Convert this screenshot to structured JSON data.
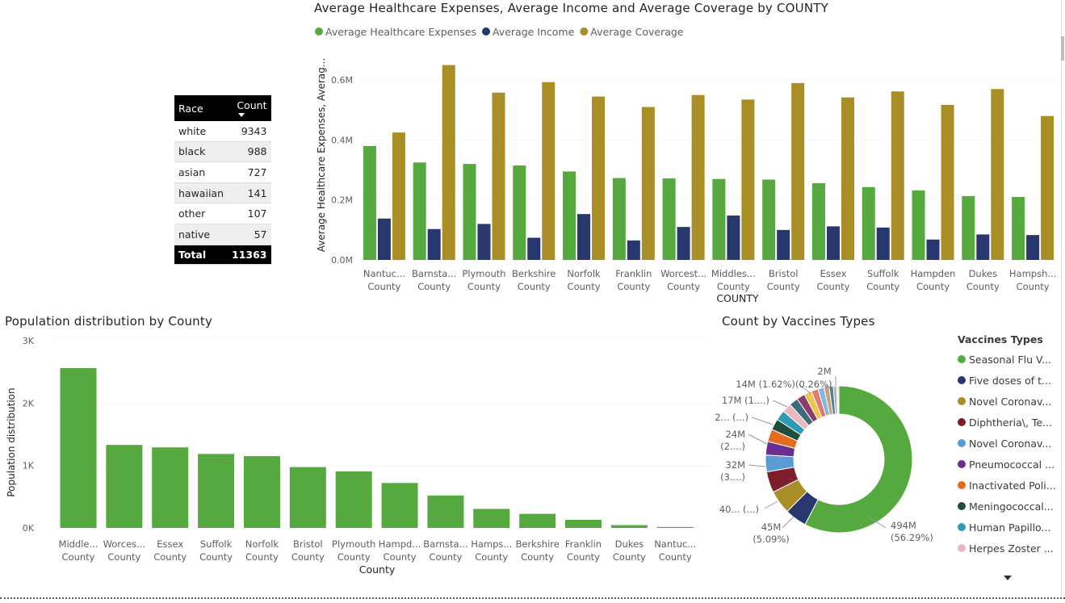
{
  "race_table": {
    "headers": [
      "Race",
      "Count"
    ],
    "rows": [
      {
        "race": "white",
        "count": "9343"
      },
      {
        "race": "black",
        "count": "988"
      },
      {
        "race": "asian",
        "count": "727"
      },
      {
        "race": "hawaiian",
        "count": "141"
      },
      {
        "race": "other",
        "count": "107"
      },
      {
        "race": "native",
        "count": "57"
      }
    ],
    "total_label": "Total",
    "total_value": "11363"
  },
  "top_chart_title": "Average Healthcare Expenses, Average Income and Average Coverage by COUNTY",
  "pop_chart_title": "Population distribution by County",
  "vac_chart_title": "Count by Vaccines Types",
  "chart_data": [
    {
      "type": "bar",
      "title": "Average Healthcare Expenses, Average Income and Average Coverage by COUNTY",
      "xlabel": "COUNTY",
      "ylabel": "Average Healthcare Expenses, Averag...",
      "ylim": [
        0,
        0.7
      ],
      "yticks": [
        "0.0M",
        "0.2M",
        "0.4M",
        "0.6M"
      ],
      "legend_position": "top-left",
      "categories": [
        [
          "Nantuc...",
          "County"
        ],
        [
          "Barnsta...",
          "County"
        ],
        [
          "Plymouth",
          "County"
        ],
        [
          "Berkshire",
          "County"
        ],
        [
          "Norfolk",
          "County"
        ],
        [
          "Franklin",
          "County"
        ],
        [
          "Worcest...",
          "County"
        ],
        [
          "Middles...",
          "County"
        ],
        [
          "Bristol",
          "County"
        ],
        [
          "Essex",
          "County"
        ],
        [
          "Suffolk",
          "County"
        ],
        [
          "Hampden",
          "County"
        ],
        [
          "Dukes",
          "County"
        ],
        [
          "Hampsh...",
          "County"
        ]
      ],
      "series": [
        {
          "name": "Average Healthcare Expenses",
          "color": "#56A93F",
          "values": [
            0.38,
            0.325,
            0.32,
            0.315,
            0.295,
            0.273,
            0.272,
            0.27,
            0.268,
            0.256,
            0.243,
            0.232,
            0.213,
            0.21
          ]
        },
        {
          "name": "Average Income",
          "color": "#28376E",
          "values": [
            0.138,
            0.103,
            0.12,
            0.074,
            0.153,
            0.065,
            0.11,
            0.148,
            0.1,
            0.112,
            0.108,
            0.068,
            0.085,
            0.083
          ]
        },
        {
          "name": "Average Coverage",
          "color": "#A98E25",
          "values": [
            0.425,
            0.65,
            0.558,
            0.593,
            0.545,
            0.51,
            0.55,
            0.535,
            0.59,
            0.542,
            0.562,
            0.517,
            0.57,
            0.48
          ]
        }
      ]
    },
    {
      "type": "bar",
      "title": "Population distribution by County",
      "xlabel": "County",
      "ylabel": "Population distribution",
      "ylim": [
        0,
        3000
      ],
      "yticks": [
        "0K",
        "1K",
        "2K",
        "3K"
      ],
      "color": "#56A93F",
      "categories": [
        [
          "Middle...",
          "County"
        ],
        [
          "Worces...",
          "County"
        ],
        [
          "Essex",
          "County"
        ],
        [
          "Suffolk",
          "County"
        ],
        [
          "Norfolk",
          "County"
        ],
        [
          "Bristol",
          "County"
        ],
        [
          "Plymouth",
          "County"
        ],
        [
          "Hampd...",
          "County"
        ],
        [
          "Barnsta...",
          "County"
        ],
        [
          "Hamps...",
          "County"
        ],
        [
          "Berkshire",
          "County"
        ],
        [
          "Franklin",
          "County"
        ],
        [
          "Dukes",
          "County"
        ],
        [
          "Nantuc...",
          "County"
        ]
      ],
      "values": [
        2560,
        1330,
        1290,
        1185,
        1150,
        975,
        905,
        720,
        520,
        305,
        225,
        130,
        45,
        15
      ]
    },
    {
      "type": "pie",
      "title": "Count by Vaccines Types",
      "legend_title": "Vaccines Types",
      "legend_position": "right",
      "slices": [
        {
          "name": "Seasonal Flu V...",
          "value": 56.29,
          "color": "#56A93F"
        },
        {
          "name": "Five doses of t...",
          "value": 4.7,
          "color": "#28376E"
        },
        {
          "name": "Novel Coronav...",
          "value": 5.09,
          "color": "#A98E25"
        },
        {
          "name": "Diphtheria\\, Te...",
          "value": 4.5,
          "color": "#7F1E2B"
        },
        {
          "name": "Novel Coronav...",
          "value": 3.6,
          "color": "#5B9BD5"
        },
        {
          "name": "Pneumococcal ...",
          "value": 2.9,
          "color": "#6B2E8F"
        },
        {
          "name": "Inactivated Poli...",
          "value": 2.7,
          "color": "#E36C21"
        },
        {
          "name": "Meningococcal...",
          "value": 2.4,
          "color": "#1F4E3D"
        },
        {
          "name": "Human Papillo...",
          "value": 2.2,
          "color": "#2E9BB5"
        },
        {
          "name": "Herpes Zoster ...",
          "value": 2.0,
          "color": "#E8B8C0"
        },
        {
          "name": "",
          "value": 1.9,
          "color": "#3F6A7A"
        },
        {
          "name": "",
          "value": 1.8,
          "color": "#8B3B6E"
        },
        {
          "name": "",
          "value": 1.62,
          "color": "#F0C64A"
        },
        {
          "name": "",
          "value": 1.5,
          "color": "#E07A7A"
        },
        {
          "name": "",
          "value": 1.3,
          "color": "#7FB8E0"
        },
        {
          "name": "",
          "value": 1.1,
          "color": "#C9A07A"
        },
        {
          "name": "",
          "value": 0.9,
          "color": "#4F7F9F"
        },
        {
          "name": "",
          "value": 0.7,
          "color": "#B0B0B0"
        },
        {
          "name": "",
          "value": 0.26,
          "color": "#F4A460"
        },
        {
          "name": "",
          "value": 0.23,
          "color": "#6A8FB0"
        }
      ],
      "labels": [
        {
          "lines": [
            "494M",
            "(56.29%)"
          ]
        },
        {
          "lines": [
            "45M",
            "(5.09%)"
          ]
        },
        {
          "lines": [
            "40... (...)"
          ]
        },
        {
          "lines": [
            "32M",
            "(3....)"
          ]
        },
        {
          "lines": [
            "24M",
            "(2....)"
          ]
        },
        {
          "lines": [
            "2... (...)"
          ]
        },
        {
          "lines": [
            "17M (1....)"
          ]
        },
        {
          "lines": [
            "14M (1.62%)"
          ]
        },
        {
          "lines": [
            "(0.26%)"
          ]
        },
        {
          "lines": [
            "2M"
          ]
        }
      ]
    }
  ]
}
